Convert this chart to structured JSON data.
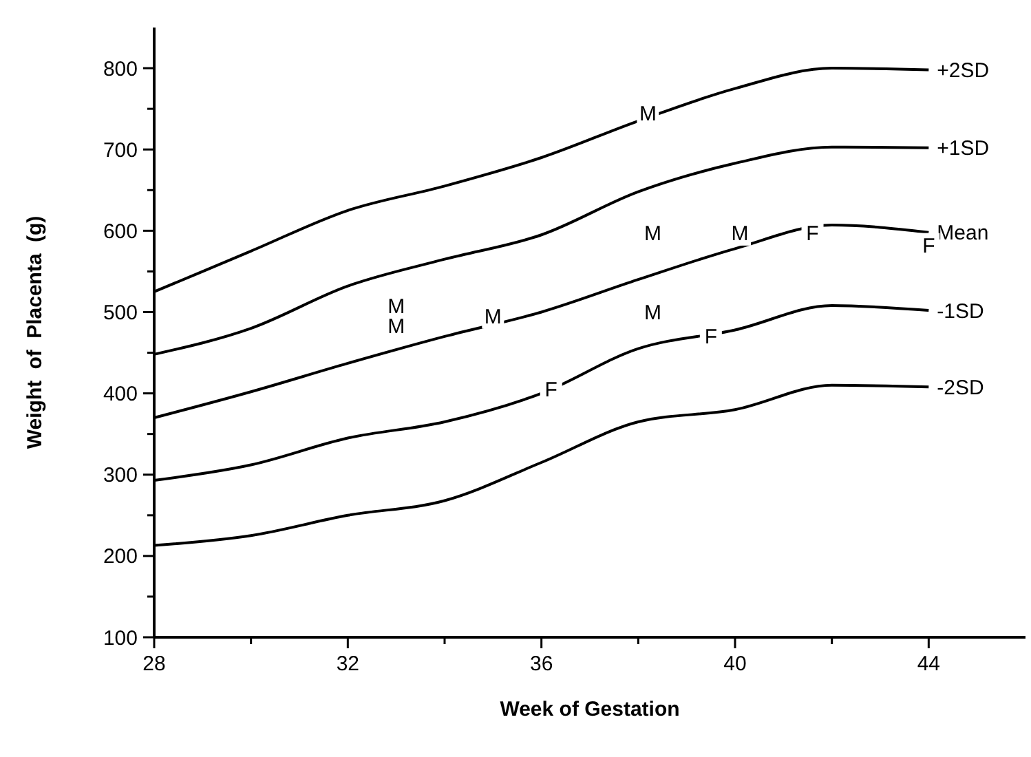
{
  "chart_data": {
    "type": "line",
    "xlabel": "Week of Gestation",
    "ylabel": "Weight of Placenta (g)",
    "x": [
      28,
      30,
      32,
      34,
      36,
      38,
      40,
      42,
      44
    ],
    "xlim": [
      28,
      46
    ],
    "xticks": [
      28,
      {
        "value": 30,
        "label": null
      },
      32,
      {
        "value": 34,
        "label": null
      },
      36,
      {
        "value": 38,
        "label": null
      },
      40,
      {
        "value": 42,
        "label": null
      },
      44
    ],
    "ylim": [
      100,
      850
    ],
    "yticks": [
      100,
      {
        "value": 150,
        "label": null
      },
      200,
      {
        "value": 250,
        "label": null
      },
      300,
      {
        "value": 350,
        "label": null
      },
      400,
      {
        "value": 450,
        "label": null
      },
      500,
      {
        "value": 550,
        "label": null
      },
      600,
      {
        "value": 650,
        "label": null
      },
      700,
      {
        "value": 750,
        "label": null
      },
      800
    ],
    "grid": false,
    "legend": false,
    "marker": "none",
    "line_style": "solid",
    "series": [
      {
        "name": "+2SD",
        "color": "#000000",
        "values": [
          525,
          575,
          625,
          655,
          690,
          735,
          775,
          800,
          798
        ]
      },
      {
        "name": "+1SD",
        "color": "#000000",
        "values": [
          448,
          480,
          532,
          565,
          595,
          648,
          683,
          703,
          702
        ]
      },
      {
        "name": "Mean",
        "color": "#000000",
        "values": [
          370,
          402,
          437,
          470,
          500,
          540,
          578,
          607,
          598
        ]
      },
      {
        "name": "-1SD",
        "color": "#000000",
        "values": [
          293,
          312,
          345,
          365,
          400,
          455,
          478,
          508,
          502
        ]
      },
      {
        "name": "-2SD",
        "color": "#000000",
        "values": [
          213,
          225,
          250,
          268,
          315,
          365,
          380,
          410,
          408
        ]
      }
    ],
    "annotations": [
      {
        "text": "M",
        "x": 38.2,
        "y": 745
      },
      {
        "text": "M",
        "x": 33,
        "y": 508
      },
      {
        "text": "M",
        "x": 33,
        "y": 483
      },
      {
        "text": "M",
        "x": 35,
        "y": 495
      },
      {
        "text": "M",
        "x": 38.3,
        "y": 597
      },
      {
        "text": "M",
        "x": 40.1,
        "y": 597
      },
      {
        "text": "F",
        "x": 41.6,
        "y": 597
      },
      {
        "text": "F",
        "x": 44,
        "y": 582
      },
      {
        "text": "M",
        "x": 38.3,
        "y": 500
      },
      {
        "text": "F",
        "x": 39.5,
        "y": 470
      },
      {
        "text": "F",
        "x": 36.2,
        "y": 405
      }
    ]
  }
}
